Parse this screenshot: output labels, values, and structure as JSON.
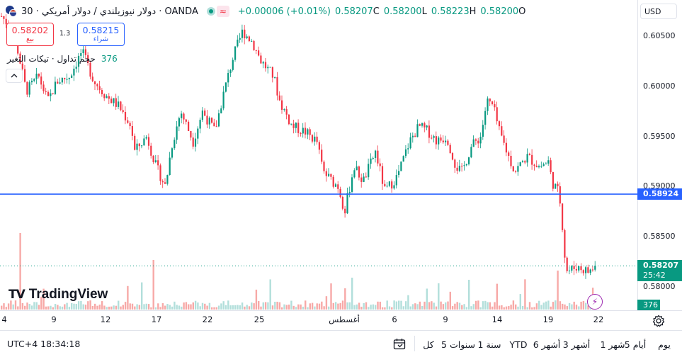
{
  "header": {
    "symbol_title": "دولار نيوزيلندي / دولار أمريكي · 30 · OANDA",
    "change": "+0.00006 (+0.01%)",
    "ohlc": [
      {
        "value": "0.58207",
        "label": "C"
      },
      {
        "value": "0.58200",
        "label": "L"
      },
      {
        "value": "0.58223",
        "label": "H"
      },
      {
        "value": "0.58200",
        "label": "O"
      }
    ],
    "wave_icon": "≈"
  },
  "trade": {
    "sell_price": "0.58202",
    "sell_label": "بيع",
    "spread": "1.3",
    "buy_price": "0.58215",
    "buy_label": "شراء"
  },
  "volume_legend": {
    "label": "حجم تداول · تيكات التغير",
    "value": "376"
  },
  "collapse_icon": "chevron-up-icon",
  "brand": {
    "mark": "TV",
    "name": "TradingView"
  },
  "price_axis": {
    "currency": "USD",
    "ticks": [
      "0.60500",
      "0.60000",
      "0.59500",
      "0.59000",
      "0.58500",
      "0.58000"
    ],
    "horizontal_line_price": "0.58924",
    "last_price": "0.58207",
    "countdown": "25:42",
    "volume_tag": "376"
  },
  "time_axis": {
    "labels": [
      "4",
      "9",
      "12",
      "17",
      "22",
      "25",
      "أغسطس",
      "6",
      "9",
      "14",
      "19",
      "22"
    ]
  },
  "bottom_bar": {
    "clock": "UTC+4 18:34:18",
    "ranges": [
      "يوم",
      "5 أيام",
      "1 شهر",
      "3 أشهر",
      "6 أشهر",
      "YTD",
      "1 سنة",
      "5 سنوات",
      "كل"
    ]
  },
  "colors": {
    "up": "#089981",
    "down": "#f23645",
    "hline": "#2962ff",
    "last_price_bg": "#089981",
    "volume_up": "#b2dfdb",
    "volume_down": "#f7a9a7"
  },
  "chart_data": {
    "type": "candlestick",
    "symbol": "NZD/USD",
    "interval": "30",
    "ylim": [
      0.578,
      0.6072
    ],
    "anchors": [
      [
        0,
        0.607
      ],
      [
        0.02,
        0.6055
      ],
      [
        0.04,
        0.5995
      ],
      [
        0.06,
        0.601
      ],
      [
        0.075,
        0.5985
      ],
      [
        0.09,
        0.6005
      ],
      [
        0.11,
        0.601
      ],
      [
        0.13,
        0.6035
      ],
      [
        0.15,
        0.6005
      ],
      [
        0.17,
        0.599
      ],
      [
        0.19,
        0.598
      ],
      [
        0.21,
        0.596
      ],
      [
        0.215,
        0.5935
      ],
      [
        0.235,
        0.595
      ],
      [
        0.25,
        0.592
      ],
      [
        0.265,
        0.59
      ],
      [
        0.275,
        0.594
      ],
      [
        0.29,
        0.5975
      ],
      [
        0.31,
        0.5945
      ],
      [
        0.325,
        0.5975
      ],
      [
        0.345,
        0.5955
      ],
      [
        0.36,
        0.5995
      ],
      [
        0.375,
        0.603
      ],
      [
        0.39,
        0.6055
      ],
      [
        0.405,
        0.6045
      ],
      [
        0.42,
        0.6025
      ],
      [
        0.44,
        0.601
      ],
      [
        0.45,
        0.5985
      ],
      [
        0.47,
        0.596
      ],
      [
        0.49,
        0.5955
      ],
      [
        0.51,
        0.5945
      ],
      [
        0.52,
        0.5915
      ],
      [
        0.535,
        0.5905
      ],
      [
        0.545,
        0.59
      ],
      [
        0.555,
        0.5875
      ],
      [
        0.57,
        0.592
      ],
      [
        0.585,
        0.5905
      ],
      [
        0.605,
        0.5935
      ],
      [
        0.62,
        0.5895
      ],
      [
        0.64,
        0.591
      ],
      [
        0.66,
        0.5945
      ],
      [
        0.675,
        0.596
      ],
      [
        0.69,
        0.5955
      ],
      [
        0.705,
        0.5945
      ],
      [
        0.72,
        0.595
      ],
      [
        0.735,
        0.592
      ],
      [
        0.745,
        0.5915
      ],
      [
        0.76,
        0.594
      ],
      [
        0.775,
        0.595
      ],
      [
        0.785,
        0.5985
      ],
      [
        0.795,
        0.598
      ],
      [
        0.805,
        0.5955
      ],
      [
        0.82,
        0.593
      ],
      [
        0.83,
        0.5915
      ],
      [
        0.85,
        0.593
      ],
      [
        0.87,
        0.592
      ],
      [
        0.885,
        0.5925
      ],
      [
        0.89,
        0.5905
      ],
      [
        0.9,
        0.5895
      ],
      [
        0.905,
        0.588
      ],
      [
        0.91,
        0.5835
      ],
      [
        0.915,
        0.5815
      ],
      [
        0.93,
        0.582
      ],
      [
        0.95,
        0.5815
      ],
      [
        0.96,
        0.582
      ]
    ]
  }
}
